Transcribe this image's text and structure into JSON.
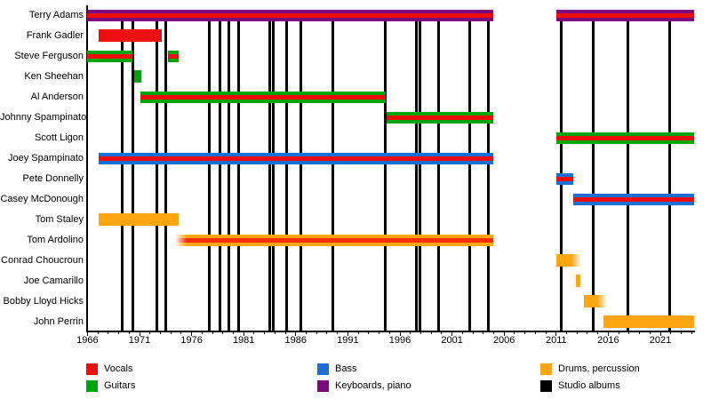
{
  "chart_data": {
    "type": "gantt",
    "xlabel": "",
    "ylabel": "",
    "x_axis": {
      "min": 1966,
      "max": 2024.3,
      "major_ticks": [
        1966,
        1971,
        1976,
        1981,
        1986,
        1991,
        1996,
        2001,
        2006,
        2011,
        2016,
        2021
      ],
      "minor_tick_step": 1,
      "grid": false
    },
    "colors": {
      "vocals": "#ee0d0d",
      "guitars": "#00a40a",
      "bass": "#1a6fd4",
      "keyboards": "#7c0a7c",
      "drums": "#ffa511",
      "albums": "#000000",
      "background": "#ffffff",
      "text": "#000000"
    },
    "members": [
      {
        "name": "Terry Adams",
        "segments": [
          {
            "start": 1966.0,
            "end": 2005.0,
            "bar": "keyboards",
            "stripe": "vocals",
            "roles": [
              "Keyboards, piano",
              "Vocals"
            ]
          },
          {
            "start": 2011.05,
            "end": 2024.25,
            "bar": "keyboards",
            "stripe": "vocals",
            "roles": [
              "Keyboards, piano",
              "Vocals"
            ]
          }
        ]
      },
      {
        "name": "Frank Gadler",
        "segments": [
          {
            "start": 1967.1,
            "end": 1973.1,
            "bar": "vocals",
            "roles": [
              "Vocals"
            ]
          }
        ]
      },
      {
        "name": "Steve Ferguson",
        "segments": [
          {
            "start": 1966.0,
            "end": 1970.3,
            "bar": "guitars",
            "stripe": "vocals",
            "roles": [
              "Guitars",
              "Vocals"
            ]
          },
          {
            "start": 1973.75,
            "end": 1974.75,
            "bar": "guitars",
            "stripe": "vocals",
            "roles": [
              "Guitars",
              "Vocals"
            ]
          }
        ]
      },
      {
        "name": "Ken Sheehan",
        "segments": [
          {
            "start": 1970.5,
            "end": 1971.2,
            "bar": "guitars",
            "roles": [
              "Guitars"
            ]
          }
        ]
      },
      {
        "name": "Al Anderson",
        "segments": [
          {
            "start": 1971.1,
            "end": 1994.6,
            "bar": "guitars",
            "stripe": "vocals",
            "roles": [
              "Guitars",
              "Vocals"
            ]
          }
        ]
      },
      {
        "name": "Johnny Spampinato",
        "segments": [
          {
            "start": 1994.7,
            "end": 2005.0,
            "bar": "guitars",
            "stripe": "vocals",
            "roles": [
              "Guitars",
              "Vocals"
            ]
          }
        ]
      },
      {
        "name": "Scott Ligon",
        "segments": [
          {
            "start": 2011.05,
            "end": 2024.25,
            "bar": "guitars",
            "stripe": "vocals",
            "roles": [
              "Guitars",
              "Vocals"
            ]
          }
        ]
      },
      {
        "name": "Joey Spampinato",
        "segments": [
          {
            "start": 1967.1,
            "end": 2005.0,
            "bar": "bass",
            "stripe": "vocals",
            "roles": [
              "Bass",
              "Vocals"
            ]
          }
        ]
      },
      {
        "name": "Pete Donnelly",
        "segments": [
          {
            "start": 2011.05,
            "end": 2012.6,
            "bar": "bass",
            "stripe": "vocals",
            "roles": [
              "Bass",
              "Vocals"
            ]
          }
        ]
      },
      {
        "name": "Casey McDonough",
        "segments": [
          {
            "start": 2012.6,
            "end": 2024.25,
            "bar": "bass",
            "stripe": "vocals",
            "roles": [
              "Bass",
              "Vocals"
            ]
          }
        ]
      },
      {
        "name": "Tom Staley",
        "segments": [
          {
            "start": 1967.1,
            "end": 1974.75,
            "bar": "drums",
            "roles": [
              "Drums, percussion"
            ]
          }
        ]
      },
      {
        "name": "Tom Ardolino",
        "segments": [
          {
            "start": 1974.4,
            "end": 2005.0,
            "bar": "drums",
            "stripe": "vocals",
            "stripe_color": "#f43000",
            "fade_left": true,
            "roles": [
              "Drums, percussion",
              "Vocals"
            ]
          }
        ]
      },
      {
        "name": "Conrad Choucroun",
        "segments": [
          {
            "start": 2011.0,
            "end": 2013.4,
            "bar": "drums",
            "fade_right": true,
            "roles": [
              "Drums, percussion"
            ]
          }
        ]
      },
      {
        "name": "Joe Camarillo",
        "segments": [
          {
            "start": 2012.9,
            "end": 2013.35,
            "bar": "drums",
            "roles": [
              "Drums, percussion"
            ]
          }
        ]
      },
      {
        "name": "Bobby Lloyd Hicks",
        "segments": [
          {
            "start": 2013.7,
            "end": 2015.85,
            "bar": "drums",
            "fade_right": true,
            "roles": [
              "Drums, percussion"
            ]
          }
        ]
      },
      {
        "name": "John Perrin",
        "segments": [
          {
            "start": 2015.5,
            "end": 2024.25,
            "bar": "drums",
            "roles": [
              "Drums, percussion"
            ]
          }
        ]
      }
    ],
    "albums": {
      "label": "Studio albums",
      "years": [
        1969.3,
        1970.4,
        1972.7,
        1973.5,
        1977.7,
        1978.7,
        1979.6,
        1980.5,
        1983.5,
        1983.85,
        1985.1,
        1986.5,
        1989.6,
        1994.6,
        1997.6,
        1997.95,
        1999.7,
        2002.7,
        2004.5,
        2011.5,
        2014.6,
        2017.9,
        2021.9
      ]
    },
    "legend": {
      "position": "bottom",
      "items": [
        {
          "label": "Vocals",
          "color_key": "vocals",
          "col": 0,
          "row": 0
        },
        {
          "label": "Guitars",
          "color_key": "guitars",
          "col": 0,
          "row": 1
        },
        {
          "label": "Bass",
          "color_key": "bass",
          "col": 1,
          "row": 0
        },
        {
          "label": "Keyboards, piano",
          "color_key": "keyboards",
          "col": 1,
          "row": 1
        },
        {
          "label": "Drums, percussion",
          "color_key": "drums",
          "col": 2,
          "row": 0
        },
        {
          "label": "Studio albums",
          "color_key": "albums",
          "col": 2,
          "row": 1
        }
      ]
    }
  }
}
